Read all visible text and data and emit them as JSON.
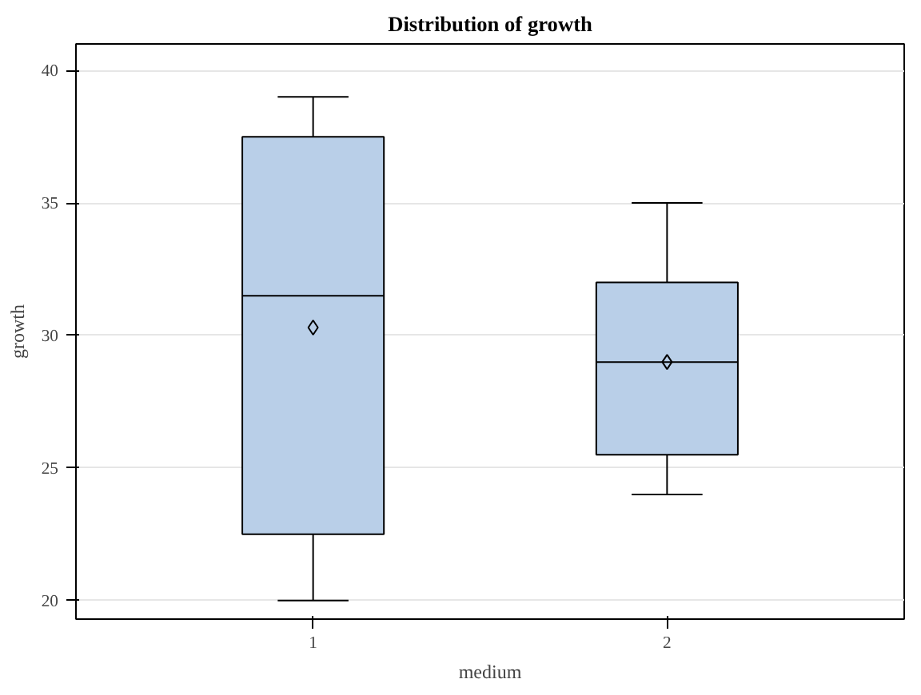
{
  "chart_data": {
    "type": "box",
    "title": "Distribution of growth",
    "xlabel": "medium",
    "ylabel": "growth",
    "categories": [
      "1",
      "2"
    ],
    "boxes": [
      {
        "low": 20,
        "q1": 22.5,
        "median": 31.5,
        "q3": 37.5,
        "high": 39,
        "mean": 30.3
      },
      {
        "low": 24,
        "q1": 25.5,
        "median": 29,
        "q3": 32,
        "high": 35,
        "mean": 29
      }
    ],
    "color": "#b9cfe8",
    "ylim": [
      19.3,
      41
    ],
    "yticks": [
      20,
      25,
      30,
      35,
      40
    ],
    "grid": "y"
  }
}
